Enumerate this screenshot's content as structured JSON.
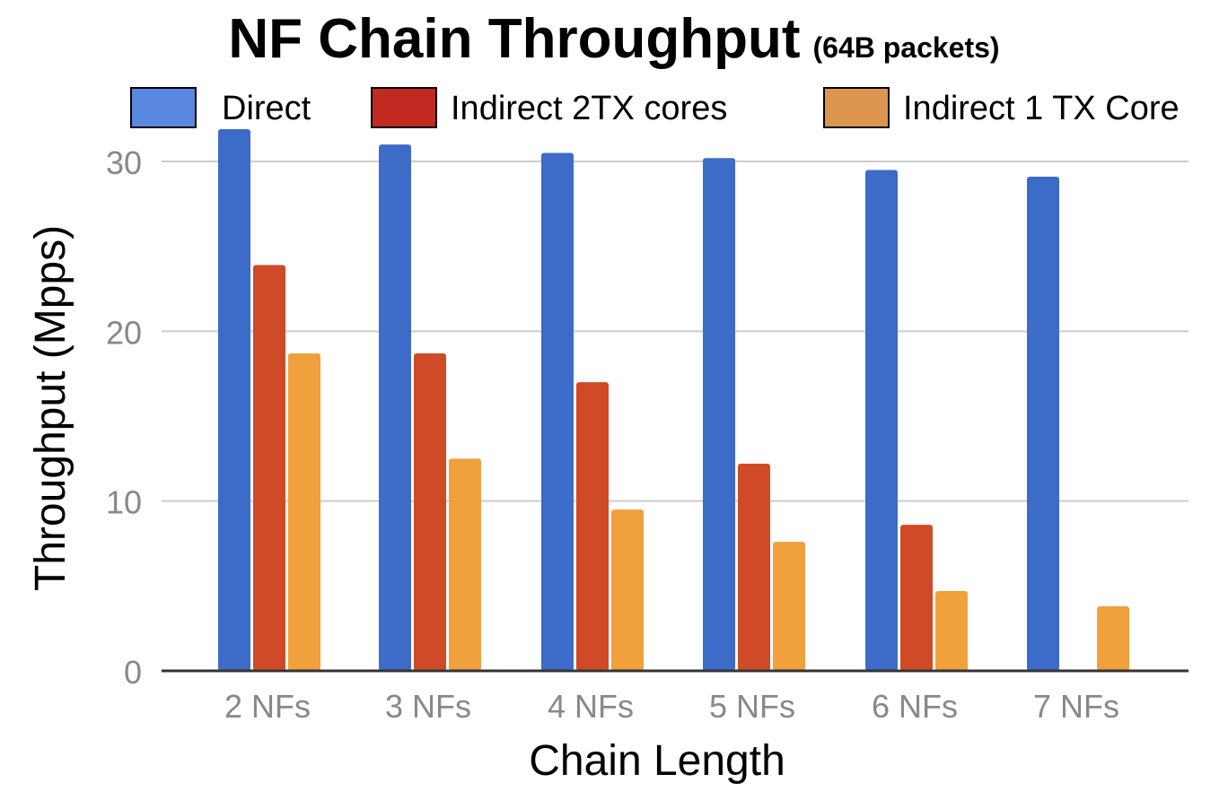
{
  "chart_data": {
    "type": "bar",
    "title": "NF Chain Throughput",
    "subtitle": "(64B packets)",
    "xlabel": "Chain Length",
    "ylabel": "Throughput (Mpps)",
    "categories": [
      "2 NFs",
      "3 NFs",
      "4 NFs",
      "5 NFs",
      "6 NFs",
      "7 NFs"
    ],
    "ylim": [
      0,
      32
    ],
    "yticks": [
      0,
      10,
      20,
      30
    ],
    "grid": true,
    "legend_position": "top",
    "series": [
      {
        "name": "Direct",
        "color": "#3c6cc8",
        "legend_color": "#5a88e0",
        "values": [
          31.9,
          31.0,
          30.5,
          30.2,
          29.5,
          29.1
        ]
      },
      {
        "name": "Indirect 2TX cores",
        "color": "#d04a28",
        "legend_color": "#c02a20",
        "values": [
          23.9,
          18.7,
          17.0,
          12.2,
          8.6,
          0
        ]
      },
      {
        "name": "Indirect 1 TX Core",
        "color": "#f0a03c",
        "legend_color": "#dc9650",
        "values": [
          18.7,
          12.5,
          9.5,
          7.6,
          4.7,
          3.8
        ]
      }
    ]
  }
}
